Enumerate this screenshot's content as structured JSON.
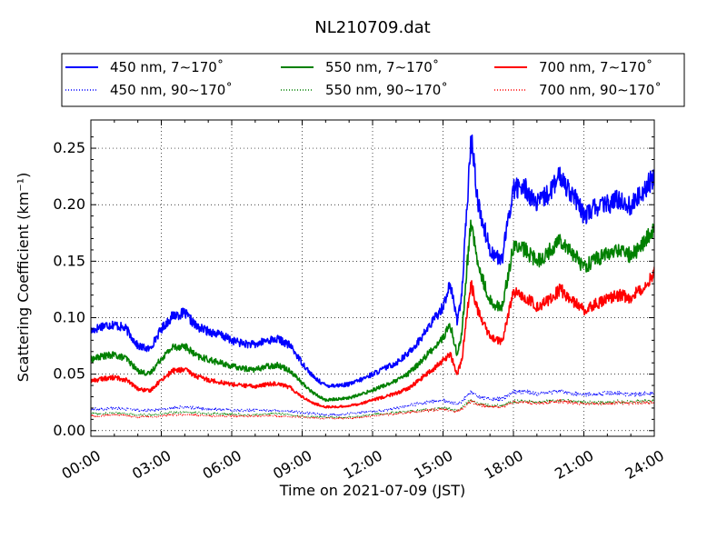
{
  "chart_data": {
    "type": "line",
    "title": "NL210709.dat",
    "xlabel": "Time on 2021-07-09 (JST)",
    "ylabel": "Scattering Coefficient (km⁻¹)",
    "xlim": [
      "00:00",
      "24:00"
    ],
    "ylim": [
      -0.005,
      0.275
    ],
    "x_ticks": [
      "00:00",
      "03:00",
      "06:00",
      "09:00",
      "12:00",
      "15:00",
      "18:00",
      "21:00",
      "24:00"
    ],
    "y_ticks": [
      "0.00",
      "0.05",
      "0.10",
      "0.15",
      "0.20",
      "0.25"
    ],
    "grid": true,
    "legend_position": "top",
    "x_hours": [
      0,
      0.5,
      1,
      1.5,
      2,
      2.5,
      3,
      3.5,
      4,
      4.5,
      5,
      5.5,
      6,
      6.5,
      7,
      7.5,
      8,
      8.5,
      9,
      9.5,
      10,
      10.5,
      11,
      11.5,
      12,
      12.5,
      13,
      13.5,
      14,
      14.5,
      15,
      15.3,
      15.6,
      15.8,
      16,
      16.2,
      16.5,
      17,
      17.5,
      18,
      18.5,
      19,
      19.5,
      20,
      20.5,
      21,
      21.5,
      22,
      22.5,
      23,
      23.5,
      24
    ],
    "series": [
      {
        "name": "450 nm, 7∼170˚",
        "color": "#0000ff",
        "style": "solid",
        "values": [
          0.088,
          0.093,
          0.094,
          0.09,
          0.075,
          0.072,
          0.09,
          0.102,
          0.104,
          0.092,
          0.088,
          0.085,
          0.08,
          0.077,
          0.076,
          0.08,
          0.081,
          0.075,
          0.06,
          0.047,
          0.04,
          0.04,
          0.041,
          0.045,
          0.05,
          0.055,
          0.06,
          0.068,
          0.08,
          0.095,
          0.11,
          0.13,
          0.098,
          0.12,
          0.19,
          0.26,
          0.2,
          0.16,
          0.15,
          0.215,
          0.215,
          0.2,
          0.21,
          0.225,
          0.21,
          0.19,
          0.198,
          0.2,
          0.205,
          0.198,
          0.212,
          0.225
        ]
      },
      {
        "name": "550 nm, 7∼170˚",
        "color": "#008000",
        "style": "solid",
        "values": [
          0.063,
          0.066,
          0.067,
          0.064,
          0.053,
          0.05,
          0.064,
          0.074,
          0.075,
          0.066,
          0.063,
          0.06,
          0.057,
          0.055,
          0.054,
          0.057,
          0.058,
          0.053,
          0.042,
          0.033,
          0.027,
          0.028,
          0.029,
          0.032,
          0.036,
          0.04,
          0.044,
          0.05,
          0.06,
          0.071,
          0.082,
          0.094,
          0.068,
          0.085,
          0.14,
          0.185,
          0.145,
          0.115,
          0.108,
          0.163,
          0.16,
          0.15,
          0.158,
          0.17,
          0.158,
          0.145,
          0.152,
          0.156,
          0.16,
          0.155,
          0.165,
          0.178
        ]
      },
      {
        "name": "700 nm, 7∼170˚",
        "color": "#ff0000",
        "style": "solid",
        "values": [
          0.044,
          0.046,
          0.047,
          0.045,
          0.037,
          0.035,
          0.045,
          0.053,
          0.054,
          0.048,
          0.045,
          0.043,
          0.041,
          0.04,
          0.039,
          0.041,
          0.042,
          0.038,
          0.03,
          0.024,
          0.021,
          0.021,
          0.022,
          0.024,
          0.027,
          0.03,
          0.033,
          0.037,
          0.045,
          0.053,
          0.062,
          0.068,
          0.05,
          0.062,
          0.1,
          0.13,
          0.105,
          0.083,
          0.078,
          0.122,
          0.118,
          0.11,
          0.115,
          0.125,
          0.115,
          0.107,
          0.112,
          0.116,
          0.12,
          0.118,
          0.127,
          0.14
        ]
      },
      {
        "name": "450 nm, 90∼170˚",
        "color": "#0000ff",
        "style": "dotted",
        "values": [
          0.019,
          0.019,
          0.02,
          0.019,
          0.018,
          0.018,
          0.019,
          0.02,
          0.021,
          0.02,
          0.019,
          0.019,
          0.018,
          0.018,
          0.018,
          0.018,
          0.018,
          0.017,
          0.016,
          0.015,
          0.014,
          0.014,
          0.015,
          0.016,
          0.017,
          0.018,
          0.02,
          0.022,
          0.024,
          0.026,
          0.027,
          0.025,
          0.024,
          0.026,
          0.03,
          0.034,
          0.03,
          0.028,
          0.028,
          0.034,
          0.035,
          0.032,
          0.034,
          0.035,
          0.033,
          0.032,
          0.032,
          0.033,
          0.033,
          0.032,
          0.033,
          0.033
        ]
      },
      {
        "name": "550 nm, 90∼170˚",
        "color": "#008000",
        "style": "dotted",
        "values": [
          0.015,
          0.015,
          0.016,
          0.015,
          0.014,
          0.014,
          0.015,
          0.016,
          0.016,
          0.016,
          0.015,
          0.015,
          0.015,
          0.014,
          0.014,
          0.015,
          0.015,
          0.014,
          0.013,
          0.012,
          0.012,
          0.012,
          0.012,
          0.013,
          0.014,
          0.015,
          0.016,
          0.017,
          0.018,
          0.019,
          0.02,
          0.019,
          0.018,
          0.02,
          0.024,
          0.027,
          0.024,
          0.022,
          0.022,
          0.026,
          0.026,
          0.025,
          0.026,
          0.027,
          0.026,
          0.025,
          0.025,
          0.025,
          0.026,
          0.025,
          0.026,
          0.026
        ]
      },
      {
        "name": "700 nm, 90∼170˚",
        "color": "#ff0000",
        "style": "dotted",
        "values": [
          0.013,
          0.013,
          0.014,
          0.013,
          0.012,
          0.012,
          0.013,
          0.014,
          0.014,
          0.014,
          0.013,
          0.013,
          0.013,
          0.013,
          0.013,
          0.013,
          0.013,
          0.012,
          0.012,
          0.011,
          0.011,
          0.011,
          0.011,
          0.012,
          0.013,
          0.014,
          0.015,
          0.016,
          0.017,
          0.018,
          0.019,
          0.018,
          0.017,
          0.019,
          0.023,
          0.026,
          0.023,
          0.021,
          0.021,
          0.025,
          0.025,
          0.024,
          0.025,
          0.026,
          0.025,
          0.024,
          0.024,
          0.024,
          0.025,
          0.024,
          0.025,
          0.025
        ]
      }
    ],
    "legend_order": [
      0,
      3,
      1,
      4,
      2,
      5
    ]
  }
}
